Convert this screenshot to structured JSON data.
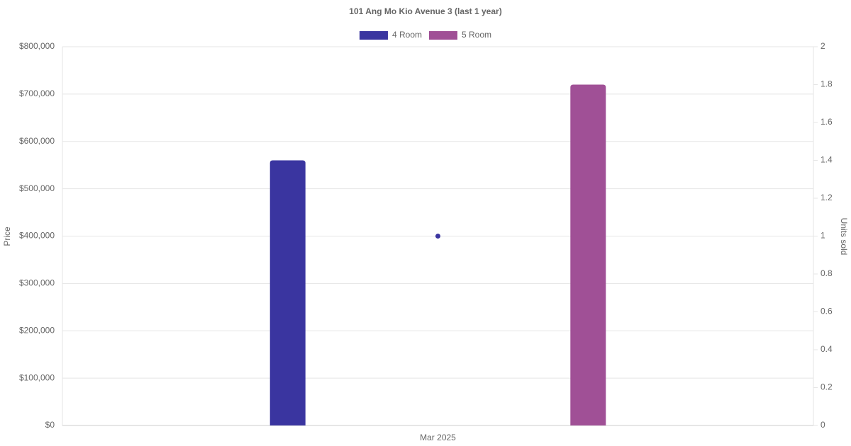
{
  "chart_data": {
    "type": "bar",
    "title": "101 Ang Mo Kio Avenue 3 (last 1 year)",
    "categories": [
      "Mar 2025"
    ],
    "series": [
      {
        "name": "4 Room",
        "color": "#3a35a0",
        "values": [
          560000
        ]
      },
      {
        "name": "5 Room",
        "color": "#a05096",
        "values": [
          720000
        ]
      },
      {
        "type": "line",
        "axis": "y2",
        "color": "#3a35a0",
        "values": [
          1
        ]
      }
    ],
    "y_label": "Price",
    "y2_label": "Units sold",
    "ylim": [
      0,
      800000
    ],
    "yticks": [
      {
        "value": 0,
        "label": "$0"
      },
      {
        "value": 100000,
        "label": "$100,000"
      },
      {
        "value": 200000,
        "label": "$200,000"
      },
      {
        "value": 300000,
        "label": "$300,000"
      },
      {
        "value": 400000,
        "label": "$400,000"
      },
      {
        "value": 500000,
        "label": "$500,000"
      },
      {
        "value": 600000,
        "label": "$600,000"
      },
      {
        "value": 700000,
        "label": "$700,000"
      },
      {
        "value": 800000,
        "label": "$800,000"
      }
    ],
    "y2lim": [
      0,
      2
    ],
    "y2ticks": [
      0,
      0.2,
      0.4,
      0.6,
      0.8,
      1,
      1.2,
      1.4,
      1.6,
      1.8,
      2
    ],
    "grid": true,
    "legend": "top"
  }
}
